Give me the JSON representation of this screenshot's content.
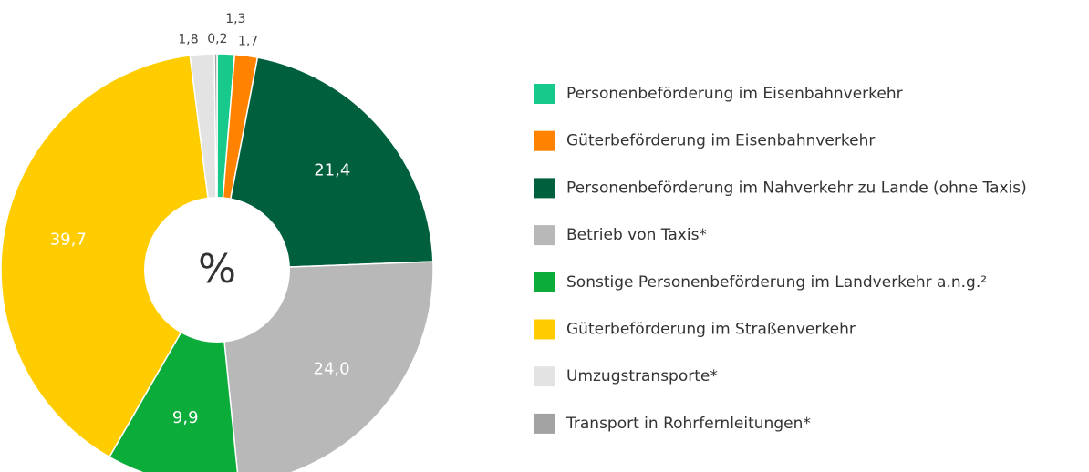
{
  "chart_data": {
    "type": "donut",
    "center_label": "%",
    "categories": [
      "Personenbeförderung im Eisenbahnverkehr",
      "Güterbeförderung im Eisenbahnverkehr",
      "Personenbeförderung im Nahverkehr zu Lande (ohne Taxis)",
      "Betrieb von Taxis*",
      "Sonstige Personenbeförderung im Landverkehr a.n.g.²",
      "Güterbeförderung im Straßenverkehr",
      "Umzugstransporte*",
      "Transport in Rohrfernleitungen*"
    ],
    "values": [
      1.3,
      1.7,
      21.4,
      24.0,
      9.9,
      39.7,
      1.8,
      0.2
    ],
    "value_labels": [
      "1,3",
      "1,7",
      "21,4",
      "24,0",
      "9,9",
      "39,7",
      "1,8",
      "0,2"
    ],
    "colors": [
      "#17c98a",
      "#ff8200",
      "#005f3c",
      "#b8b8b8",
      "#0bac3a",
      "#ffcc00",
      "#e3e3e3",
      "#a3a3a3"
    ]
  }
}
